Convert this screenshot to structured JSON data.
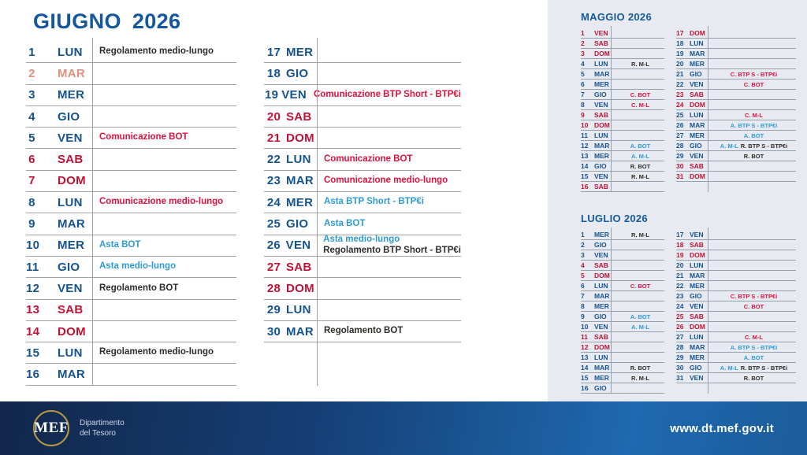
{
  "main_calendar": {
    "title_month": "GIUGNO",
    "title_year": "2026",
    "days": [
      {
        "num": "1",
        "dow": "LUN",
        "type": "weekday",
        "events": [
          {
            "text": "Regolamento medio-lungo",
            "color": "dark"
          }
        ]
      },
      {
        "num": "2",
        "dow": "MAR",
        "type": "holiday",
        "events": []
      },
      {
        "num": "3",
        "dow": "MER",
        "type": "weekday",
        "events": []
      },
      {
        "num": "4",
        "dow": "GIO",
        "type": "weekday",
        "events": []
      },
      {
        "num": "5",
        "dow": "VEN",
        "type": "weekday",
        "events": [
          {
            "text": "Comunicazione BOT",
            "color": "red"
          }
        ]
      },
      {
        "num": "6",
        "dow": "SAB",
        "type": "weekend",
        "events": []
      },
      {
        "num": "7",
        "dow": "DOM",
        "type": "weekend",
        "events": []
      },
      {
        "num": "8",
        "dow": "LUN",
        "type": "weekday",
        "events": [
          {
            "text": "Comunicazione medio-lungo",
            "color": "red"
          }
        ]
      },
      {
        "num": "9",
        "dow": "MAR",
        "type": "weekday",
        "events": []
      },
      {
        "num": "10",
        "dow": "MER",
        "type": "weekday",
        "events": [
          {
            "text": "Asta BOT",
            "color": "blue"
          }
        ]
      },
      {
        "num": "11",
        "dow": "GIO",
        "type": "weekday",
        "events": [
          {
            "text": "Asta medio-lungo",
            "color": "blue"
          }
        ]
      },
      {
        "num": "12",
        "dow": "VEN",
        "type": "weekday",
        "events": [
          {
            "text": "Regolamento BOT",
            "color": "dark"
          }
        ]
      },
      {
        "num": "13",
        "dow": "SAB",
        "type": "weekend",
        "events": []
      },
      {
        "num": "14",
        "dow": "DOM",
        "type": "weekend",
        "events": []
      },
      {
        "num": "15",
        "dow": "LUN",
        "type": "weekday",
        "events": [
          {
            "text": "Regolamento medio-lungo",
            "color": "dark"
          }
        ]
      },
      {
        "num": "16",
        "dow": "MAR",
        "type": "weekday",
        "events": []
      },
      {
        "num": "17",
        "dow": "MER",
        "type": "weekday",
        "events": []
      },
      {
        "num": "18",
        "dow": "GIO",
        "type": "weekday",
        "events": []
      },
      {
        "num": "19",
        "dow": "VEN",
        "type": "weekday",
        "events": [
          {
            "text": "Comunicazione BTP Short - BTP€i",
            "color": "red"
          }
        ]
      },
      {
        "num": "20",
        "dow": "SAB",
        "type": "weekend",
        "events": []
      },
      {
        "num": "21",
        "dow": "DOM",
        "type": "weekend",
        "events": []
      },
      {
        "num": "22",
        "dow": "LUN",
        "type": "weekday",
        "events": [
          {
            "text": "Comunicazione BOT",
            "color": "red"
          }
        ]
      },
      {
        "num": "23",
        "dow": "MAR",
        "type": "weekday",
        "events": [
          {
            "text": "Comunicazione medio-lungo",
            "color": "red"
          }
        ]
      },
      {
        "num": "24",
        "dow": "MER",
        "type": "weekday",
        "events": [
          {
            "text": "Asta BTP Short - BTP€i",
            "color": "blue"
          }
        ]
      },
      {
        "num": "25",
        "dow": "GIO",
        "type": "weekday",
        "events": [
          {
            "text": "Asta BOT",
            "color": "blue"
          }
        ]
      },
      {
        "num": "26",
        "dow": "VEN",
        "type": "weekday",
        "events": [
          {
            "text": "Asta medio-lungo",
            "color": "blue"
          },
          {
            "text": "Regolamento BTP Short - BTP€i",
            "color": "dark"
          }
        ]
      },
      {
        "num": "27",
        "dow": "SAB",
        "type": "weekend",
        "events": []
      },
      {
        "num": "28",
        "dow": "DOM",
        "type": "weekend",
        "events": []
      },
      {
        "num": "29",
        "dow": "LUN",
        "type": "weekday",
        "events": []
      },
      {
        "num": "30",
        "dow": "MAR",
        "type": "weekday",
        "events": [
          {
            "text": "Regolamento BOT",
            "color": "dark"
          }
        ]
      }
    ]
  },
  "mini_calendars": [
    {
      "title": "MAGGIO 2026",
      "days": [
        {
          "num": "1",
          "dow": "VEN",
          "type": "weekend",
          "events": []
        },
        {
          "num": "2",
          "dow": "SAB",
          "type": "weekend",
          "events": []
        },
        {
          "num": "3",
          "dow": "DOM",
          "type": "weekend",
          "events": []
        },
        {
          "num": "4",
          "dow": "LUN",
          "type": "weekday",
          "events": [
            {
              "text": "R. M-L",
              "color": "dark"
            }
          ]
        },
        {
          "num": "5",
          "dow": "MAR",
          "type": "weekday",
          "events": []
        },
        {
          "num": "6",
          "dow": "MER",
          "type": "weekday",
          "events": []
        },
        {
          "num": "7",
          "dow": "GIO",
          "type": "weekday",
          "events": [
            {
              "text": "C. BOT",
              "color": "red"
            }
          ]
        },
        {
          "num": "8",
          "dow": "VEN",
          "type": "weekday",
          "events": [
            {
              "text": "C. M-L",
              "color": "red"
            }
          ]
        },
        {
          "num": "9",
          "dow": "SAB",
          "type": "weekend",
          "events": []
        },
        {
          "num": "10",
          "dow": "DOM",
          "type": "weekend",
          "events": []
        },
        {
          "num": "11",
          "dow": "LUN",
          "type": "weekday",
          "events": []
        },
        {
          "num": "12",
          "dow": "MAR",
          "type": "weekday",
          "events": [
            {
              "text": "A. BOT",
              "color": "blue"
            }
          ]
        },
        {
          "num": "13",
          "dow": "MER",
          "type": "weekday",
          "events": [
            {
              "text": "A. M-L",
              "color": "blue"
            }
          ]
        },
        {
          "num": "14",
          "dow": "GIO",
          "type": "weekday",
          "events": [
            {
              "text": "R. BOT",
              "color": "dark"
            }
          ]
        },
        {
          "num": "15",
          "dow": "VEN",
          "type": "weekday",
          "events": [
            {
              "text": "R. M-L",
              "color": "dark"
            }
          ]
        },
        {
          "num": "16",
          "dow": "SAB",
          "type": "weekend",
          "events": []
        },
        {
          "num": "17",
          "dow": "DOM",
          "type": "weekend",
          "events": []
        },
        {
          "num": "18",
          "dow": "LUN",
          "type": "weekday",
          "events": []
        },
        {
          "num": "19",
          "dow": "MAR",
          "type": "weekday",
          "events": []
        },
        {
          "num": "20",
          "dow": "MER",
          "type": "weekday",
          "events": []
        },
        {
          "num": "21",
          "dow": "GIO",
          "type": "weekday",
          "events": [
            {
              "text": "C. BTP S - BTP€i",
              "color": "red"
            }
          ]
        },
        {
          "num": "22",
          "dow": "VEN",
          "type": "weekday",
          "events": [
            {
              "text": "C. BOT",
              "color": "red"
            }
          ]
        },
        {
          "num": "23",
          "dow": "SAB",
          "type": "weekend",
          "events": []
        },
        {
          "num": "24",
          "dow": "DOM",
          "type": "weekend",
          "events": []
        },
        {
          "num": "25",
          "dow": "LUN",
          "type": "weekday",
          "events": [
            {
              "text": "C. M-L",
              "color": "red"
            }
          ]
        },
        {
          "num": "26",
          "dow": "MAR",
          "type": "weekday",
          "events": [
            {
              "text": "A. BTP S - BTP€i",
              "color": "blue"
            }
          ]
        },
        {
          "num": "27",
          "dow": "MER",
          "type": "weekday",
          "events": [
            {
              "text": "A. BOT",
              "color": "blue"
            }
          ]
        },
        {
          "num": "28",
          "dow": "GIO",
          "type": "weekday",
          "events": [
            {
              "text": "A. M-L",
              "color": "blue"
            },
            {
              "text": "R. BTP S - BTP€i",
              "color": "dark"
            }
          ]
        },
        {
          "num": "29",
          "dow": "VEN",
          "type": "weekday",
          "events": [
            {
              "text": "R. BOT",
              "color": "dark"
            }
          ]
        },
        {
          "num": "30",
          "dow": "SAB",
          "type": "weekend",
          "events": []
        },
        {
          "num": "31",
          "dow": "DOM",
          "type": "weekend",
          "events": []
        }
      ]
    },
    {
      "title": "LUGLIO 2026",
      "days": [
        {
          "num": "1",
          "dow": "MER",
          "type": "weekday",
          "events": [
            {
              "text": "R. M-L",
              "color": "dark"
            }
          ]
        },
        {
          "num": "2",
          "dow": "GIO",
          "type": "weekday",
          "events": []
        },
        {
          "num": "3",
          "dow": "VEN",
          "type": "weekday",
          "events": []
        },
        {
          "num": "4",
          "dow": "SAB",
          "type": "weekend",
          "events": []
        },
        {
          "num": "5",
          "dow": "DOM",
          "type": "weekend",
          "events": []
        },
        {
          "num": "6",
          "dow": "LUN",
          "type": "weekday",
          "events": [
            {
              "text": "C. BOT",
              "color": "red"
            }
          ]
        },
        {
          "num": "7",
          "dow": "MAR",
          "type": "weekday",
          "events": []
        },
        {
          "num": "8",
          "dow": "MER",
          "type": "weekday",
          "events": []
        },
        {
          "num": "9",
          "dow": "GIO",
          "type": "weekday",
          "events": [
            {
              "text": "A. BOT",
              "color": "blue"
            }
          ]
        },
        {
          "num": "10",
          "dow": "VEN",
          "type": "weekday",
          "events": [
            {
              "text": "A. M-L",
              "color": "blue"
            }
          ]
        },
        {
          "num": "11",
          "dow": "SAB",
          "type": "weekend",
          "events": []
        },
        {
          "num": "12",
          "dow": "DOM",
          "type": "weekend",
          "events": []
        },
        {
          "num": "13",
          "dow": "LUN",
          "type": "weekday",
          "events": []
        },
        {
          "num": "14",
          "dow": "MAR",
          "type": "weekday",
          "events": [
            {
              "text": "R. BOT",
              "color": "dark"
            }
          ]
        },
        {
          "num": "15",
          "dow": "MER",
          "type": "weekday",
          "events": [
            {
              "text": "R. M-L",
              "color": "dark"
            }
          ]
        },
        {
          "num": "16",
          "dow": "GIO",
          "type": "weekday",
          "events": []
        },
        {
          "num": "17",
          "dow": "VEN",
          "type": "weekday",
          "events": []
        },
        {
          "num": "18",
          "dow": "SAB",
          "type": "weekend",
          "events": []
        },
        {
          "num": "19",
          "dow": "DOM",
          "type": "weekend",
          "events": []
        },
        {
          "num": "20",
          "dow": "LUN",
          "type": "weekday",
          "events": []
        },
        {
          "num": "21",
          "dow": "MAR",
          "type": "weekday",
          "events": []
        },
        {
          "num": "22",
          "dow": "MER",
          "type": "weekday",
          "events": []
        },
        {
          "num": "23",
          "dow": "GIO",
          "type": "weekday",
          "events": [
            {
              "text": "C. BTP S - BTP€i",
              "color": "red"
            }
          ]
        },
        {
          "num": "24",
          "dow": "VEN",
          "type": "weekday",
          "events": [
            {
              "text": "C. BOT",
              "color": "red"
            }
          ]
        },
        {
          "num": "25",
          "dow": "SAB",
          "type": "weekend",
          "events": []
        },
        {
          "num": "26",
          "dow": "DOM",
          "type": "weekend",
          "events": []
        },
        {
          "num": "27",
          "dow": "LUN",
          "type": "weekday",
          "events": [
            {
              "text": "C. M-L",
              "color": "red"
            }
          ]
        },
        {
          "num": "28",
          "dow": "MAR",
          "type": "weekday",
          "events": [
            {
              "text": "A. BTP S - BTP€i",
              "color": "blue"
            }
          ]
        },
        {
          "num": "29",
          "dow": "MER",
          "type": "weekday",
          "events": [
            {
              "text": "A. BOT",
              "color": "blue"
            }
          ]
        },
        {
          "num": "30",
          "dow": "GIO",
          "type": "weekday",
          "events": [
            {
              "text": "A. M-L",
              "color": "blue"
            },
            {
              "text": "R. BTP S - BTP€i",
              "color": "dark"
            }
          ]
        },
        {
          "num": "31",
          "dow": "VEN",
          "type": "weekday",
          "events": [
            {
              "text": "R. BOT",
              "color": "dark"
            }
          ]
        }
      ]
    }
  ],
  "footer": {
    "logo_text": "MEF",
    "department_line1": "Dipartimento",
    "department_line2": "del Tesoro",
    "website": "www.dt.mef.gov.it"
  },
  "colors": {
    "weekday_blue": "#15538F",
    "weekend_red": "#C11236",
    "holiday_salmon": "#E2907F",
    "event_red": "#E0103C",
    "event_blue": "#2D9BD5",
    "event_dark": "#2F2C29",
    "title_blue": "#15579E",
    "sidebar_bg": "#E7EBF1",
    "footer_navy": "#12274B",
    "footer_blue": "#1E69B0",
    "logo_gold": "#B79A3F"
  }
}
